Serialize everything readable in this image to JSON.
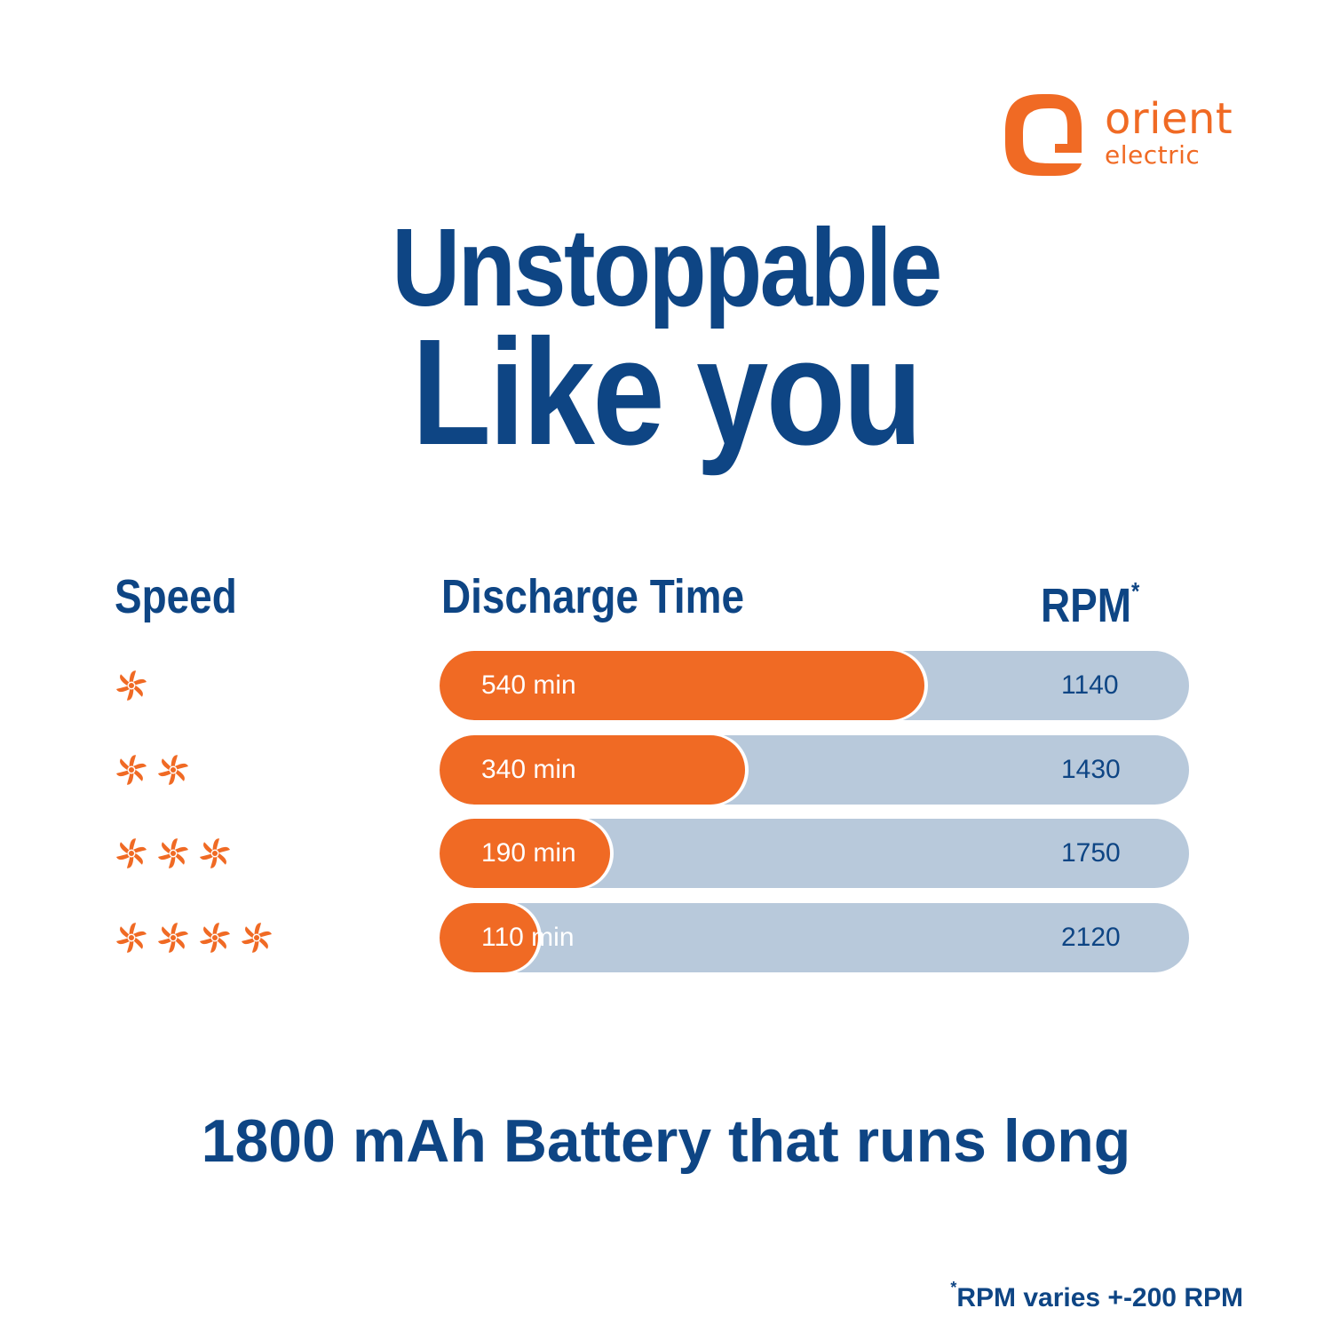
{
  "brand": {
    "name_line1": "orient",
    "name_line2": "electric",
    "color": "#f06a24"
  },
  "headline": {
    "line1": "Unstoppable",
    "line2": "Like you"
  },
  "columns": {
    "speed": "Speed",
    "discharge": "Discharge Time",
    "rpm": "RPM",
    "rpm_mark": "*"
  },
  "chart_data": {
    "type": "bar",
    "categories": [
      "1",
      "2",
      "3",
      "4"
    ],
    "series": [
      {
        "values": [
          540,
          340,
          190,
          110
        ]
      }
    ],
    "value_labels": [
      "540 min",
      "340 min",
      "190 min",
      "110 min"
    ],
    "rpm": [
      "1140",
      "1430",
      "1750",
      "2120"
    ],
    "speed_icon": "fan-icon",
    "xlabel": "Discharge Time",
    "ylabel": "Speed",
    "colors": {
      "bar": "#f06a24",
      "track": "#b8c9db",
      "text": "#0e4584"
    }
  },
  "tagline": "1800 mAh Battery that runs long",
  "footnote": {
    "mark": "*",
    "text": "RPM varies +-200 RPM"
  }
}
